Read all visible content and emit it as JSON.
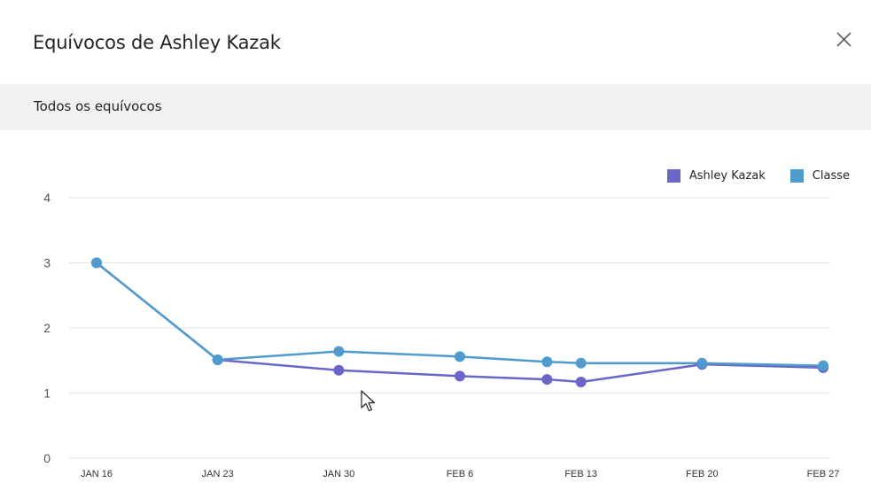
{
  "dialog": {
    "title": "Equívocos de Ashley Kazak",
    "close_icon": "close-icon"
  },
  "section": {
    "label": "Todos os equívocos"
  },
  "colors": {
    "student": "#6a66c8",
    "class": "#4f9bcd",
    "grid": "#e3e3e3",
    "axis_text": "#444444"
  },
  "chart_data": {
    "type": "line",
    "categories": [
      "JAN 16",
      "JAN 23",
      "JAN 30",
      "FEB 6",
      "FEB 13",
      "FEB 20",
      "FEB 27"
    ],
    "ylim": [
      0,
      4
    ],
    "yticks": [
      "0",
      "1",
      "2",
      "3",
      "4"
    ],
    "legend_position": "top-right",
    "grid": true,
    "series": [
      {
        "name": "Ashley Kazak",
        "color": "#6a66c8",
        "points": [
          [
            0,
            3.0
          ],
          [
            1,
            1.51
          ],
          [
            2,
            1.35
          ],
          [
            3,
            1.26
          ],
          [
            3.72,
            1.21
          ],
          [
            4,
            1.17
          ],
          [
            5,
            1.44
          ],
          [
            6,
            1.39
          ]
        ]
      },
      {
        "name": "Classe",
        "color": "#4f9bcd",
        "points": [
          [
            0,
            3.0
          ],
          [
            1,
            1.51
          ],
          [
            2,
            1.64
          ],
          [
            3,
            1.56
          ],
          [
            3.72,
            1.48
          ],
          [
            4,
            1.46
          ],
          [
            5,
            1.46
          ],
          [
            6,
            1.42
          ]
        ]
      }
    ]
  }
}
